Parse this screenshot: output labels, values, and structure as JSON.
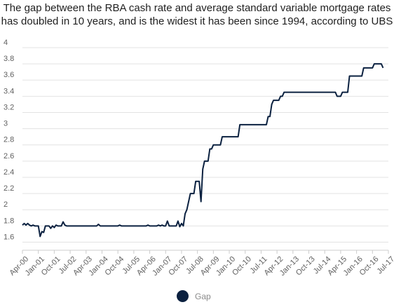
{
  "chart_data": {
    "type": "line",
    "title": "The gap between the RBA cash rate and average standard variable mortgage rates has doubled in 10 years, and is the widest it has been since 1994, according to UBS",
    "title_lines": [
      "The gap between the RBA cash rate and average standard variable mortgage rates",
      "has doubled in 10 years, and is the widest it has been since 1994, according to UBS"
    ],
    "xlabel": "",
    "ylabel": "",
    "ylim": [
      1.5,
      4.0
    ],
    "y_ticks": [
      1.6,
      1.8,
      2,
      2.2,
      2.4,
      2.6,
      2.8,
      3,
      3.2,
      3.4,
      3.6,
      3.8,
      4
    ],
    "y_tick_labels": [
      "1.6",
      "1.8",
      "2",
      "2.2",
      "2.4",
      "2.6",
      "2.8",
      "3",
      "3.2",
      "3.4",
      "3.6",
      "3.8",
      "4"
    ],
    "x_range": [
      "2000-04",
      "2017-07"
    ],
    "x_ticks": [
      "2000-04",
      "2001-01",
      "2001-10",
      "2002-07",
      "2003-04",
      "2004-01",
      "2004-10",
      "2005-07",
      "2006-04",
      "2007-01",
      "2007-10",
      "2008-07",
      "2009-04",
      "2010-01",
      "2010-10",
      "2011-07",
      "2012-04",
      "2013-01",
      "2013-10",
      "2014-07",
      "2015-04",
      "2016-01",
      "2016-10",
      "2017-07"
    ],
    "x_tick_labels": [
      "Apr-00",
      "Jan-01",
      "Oct-01",
      "Jul-02",
      "Apr-03",
      "Jan-04",
      "Oct-04",
      "Jul-05",
      "Apr-06",
      "Jan-07",
      "Oct-07",
      "Jul-08",
      "Apr-09",
      "Jan-10",
      "Oct-10",
      "Jul-11",
      "Apr-12",
      "Jan-13",
      "Oct-13",
      "Jul-14",
      "Apr-15",
      "Jan-16",
      "Oct-16",
      "Jul-17"
    ],
    "grid": "horizontal",
    "legend_position": "bottom",
    "series": [
      {
        "name": "Gap",
        "color": "#0b2140",
        "points": [
          [
            "2000-04",
            1.81
          ],
          [
            "2000-05",
            1.83
          ],
          [
            "2000-06",
            1.81
          ],
          [
            "2000-07",
            1.83
          ],
          [
            "2000-08",
            1.81
          ],
          [
            "2000-09",
            1.8
          ],
          [
            "2000-10",
            1.81
          ],
          [
            "2000-11",
            1.8
          ],
          [
            "2000-12",
            1.8
          ],
          [
            "2001-01",
            1.8
          ],
          [
            "2001-02",
            1.67
          ],
          [
            "2001-03",
            1.73
          ],
          [
            "2001-04",
            1.72
          ],
          [
            "2001-05",
            1.8
          ],
          [
            "2001-06",
            1.8
          ],
          [
            "2001-07",
            1.8
          ],
          [
            "2001-08",
            1.77
          ],
          [
            "2001-09",
            1.8
          ],
          [
            "2001-10",
            1.78
          ],
          [
            "2001-11",
            1.81
          ],
          [
            "2001-12",
            1.8
          ],
          [
            "2002-01",
            1.8
          ],
          [
            "2002-02",
            1.8
          ],
          [
            "2002-03",
            1.85
          ],
          [
            "2002-04",
            1.81
          ],
          [
            "2002-05",
            1.8
          ],
          [
            "2002-07",
            1.8
          ],
          [
            "2003-04",
            1.8
          ],
          [
            "2003-10",
            1.8
          ],
          [
            "2003-11",
            1.82
          ],
          [
            "2003-12",
            1.8
          ],
          [
            "2004-06",
            1.8
          ],
          [
            "2004-10",
            1.8
          ],
          [
            "2004-11",
            1.81
          ],
          [
            "2004-12",
            1.8
          ],
          [
            "2006-02",
            1.8
          ],
          [
            "2006-03",
            1.81
          ],
          [
            "2006-04",
            1.8
          ],
          [
            "2006-08",
            1.8
          ],
          [
            "2006-09",
            1.81
          ],
          [
            "2006-10",
            1.8
          ],
          [
            "2006-11",
            1.81
          ],
          [
            "2006-12",
            1.8
          ],
          [
            "2007-01",
            1.8
          ],
          [
            "2007-02",
            1.86
          ],
          [
            "2007-03",
            1.8
          ],
          [
            "2007-04",
            1.8
          ],
          [
            "2007-05",
            1.8
          ],
          [
            "2007-06",
            1.8
          ],
          [
            "2007-07",
            1.8
          ],
          [
            "2007-08",
            1.86
          ],
          [
            "2007-09",
            1.79
          ],
          [
            "2007-10",
            1.83
          ],
          [
            "2007-11",
            1.8
          ],
          [
            "2007-12",
            1.95
          ],
          [
            "2008-01",
            2.0
          ],
          [
            "2008-02",
            2.1
          ],
          [
            "2008-03",
            2.2
          ],
          [
            "2008-04",
            2.2
          ],
          [
            "2008-05",
            2.2
          ],
          [
            "2008-06",
            2.35
          ],
          [
            "2008-07",
            2.35
          ],
          [
            "2008-08",
            2.35
          ],
          [
            "2008-09",
            2.1
          ],
          [
            "2008-10",
            2.5
          ],
          [
            "2008-11",
            2.6
          ],
          [
            "2008-12",
            2.6
          ],
          [
            "2009-01",
            2.6
          ],
          [
            "2009-02",
            2.75
          ],
          [
            "2009-03",
            2.75
          ],
          [
            "2009-04",
            2.8
          ],
          [
            "2009-05",
            2.8
          ],
          [
            "2009-06",
            2.8
          ],
          [
            "2009-07",
            2.8
          ],
          [
            "2009-08",
            2.8
          ],
          [
            "2009-09",
            2.9
          ],
          [
            "2009-10",
            2.9
          ],
          [
            "2009-11",
            2.9
          ],
          [
            "2009-12",
            2.9
          ],
          [
            "2010-06",
            2.9
          ],
          [
            "2010-07",
            3.05
          ],
          [
            "2010-08",
            3.05
          ],
          [
            "2011-09",
            3.05
          ],
          [
            "2011-10",
            3.05
          ],
          [
            "2011-11",
            3.15
          ],
          [
            "2011-12",
            3.15
          ],
          [
            "2012-01",
            3.3
          ],
          [
            "2012-02",
            3.35
          ],
          [
            "2012-03",
            3.35
          ],
          [
            "2012-05",
            3.35
          ],
          [
            "2012-06",
            3.4
          ],
          [
            "2012-07",
            3.4
          ],
          [
            "2012-08",
            3.45
          ],
          [
            "2012-09",
            3.45
          ],
          [
            "2015-01",
            3.45
          ],
          [
            "2015-02",
            3.4
          ],
          [
            "2015-04",
            3.4
          ],
          [
            "2015-05",
            3.45
          ],
          [
            "2015-06",
            3.45
          ],
          [
            "2015-08",
            3.45
          ],
          [
            "2015-09",
            3.65
          ],
          [
            "2015-10",
            3.65
          ],
          [
            "2016-04",
            3.65
          ],
          [
            "2016-05",
            3.75
          ],
          [
            "2016-06",
            3.75
          ],
          [
            "2016-10",
            3.75
          ],
          [
            "2016-11",
            3.8
          ],
          [
            "2017-03",
            3.8
          ],
          [
            "2017-04",
            3.75
          ]
        ]
      }
    ]
  }
}
